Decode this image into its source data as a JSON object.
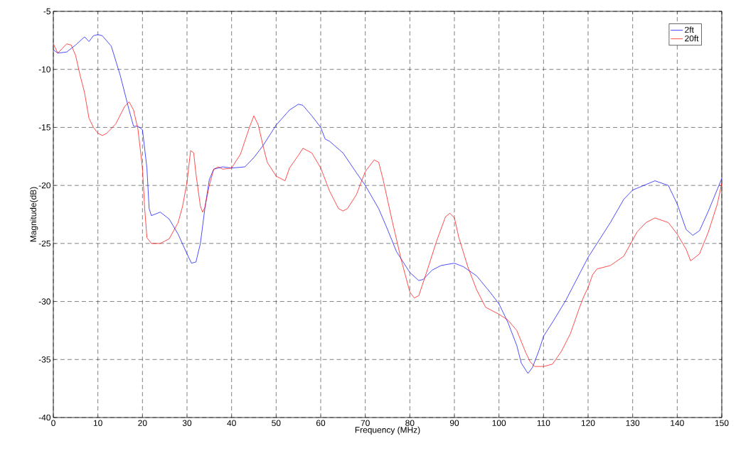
{
  "chart_data": {
    "type": "line",
    "xlabel": "Frequency (MHz)",
    "ylabel": "Magnitude(dB)",
    "xlim": [
      0,
      150
    ],
    "ylim": [
      -40,
      -5
    ],
    "xticks": [
      0,
      10,
      20,
      30,
      40,
      50,
      60,
      70,
      80,
      90,
      100,
      110,
      120,
      130,
      140,
      150
    ],
    "yticks": [
      -40,
      -35,
      -30,
      -25,
      -20,
      -15,
      -10,
      -5
    ],
    "grid": true,
    "legend": "top right",
    "line_style": "solid",
    "marker": "none",
    "series": [
      {
        "name": "2ft",
        "color": "#0000ff",
        "x": [
          0,
          1,
          3,
          5,
          7,
          8,
          9,
          10,
          11,
          13,
          15,
          17,
          18,
          19,
          20,
          21,
          21.5,
          22,
          24,
          26,
          28,
          30,
          31,
          32,
          33,
          34,
          35,
          36,
          38,
          40,
          43,
          45,
          47,
          50,
          53,
          55,
          56,
          58,
          60,
          61,
          62,
          65,
          68,
          70,
          73,
          75,
          77,
          80,
          82,
          83,
          85,
          87,
          90,
          92,
          95,
          98,
          100,
          102,
          104,
          105,
          106.5,
          107.5,
          109,
          110,
          112,
          115,
          120,
          125,
          128,
          130,
          135,
          138,
          140,
          142,
          143.5,
          145,
          147,
          150
        ],
        "values": [
          -8.3,
          -8.6,
          -8.5,
          -7.9,
          -7.2,
          -7.6,
          -7.1,
          -7.0,
          -7.1,
          -8.0,
          -10.5,
          -13.5,
          -14.9,
          -14.9,
          -15.2,
          -18.5,
          -22.0,
          -22.6,
          -22.3,
          -22.9,
          -24.2,
          -25.9,
          -26.7,
          -26.6,
          -25.0,
          -22.0,
          -19.5,
          -18.6,
          -18.4,
          -18.5,
          -18.4,
          -17.6,
          -16.6,
          -14.8,
          -13.5,
          -13.0,
          -13.1,
          -14.0,
          -15.0,
          -16.0,
          -16.2,
          -17.2,
          -18.9,
          -20.0,
          -22.0,
          -23.8,
          -25.7,
          -27.5,
          -28.2,
          -28.1,
          -27.3,
          -26.9,
          -26.7,
          -27.0,
          -27.8,
          -29.2,
          -30.2,
          -31.8,
          -33.8,
          -35.3,
          -36.2,
          -35.7,
          -34.2,
          -33.0,
          -31.8,
          -29.9,
          -26.2,
          -23.2,
          -21.2,
          -20.4,
          -19.6,
          -20.0,
          -21.6,
          -23.8,
          -24.3,
          -23.9,
          -22.2,
          -19.4
        ]
      },
      {
        "name": "20ft",
        "color": "#ff0000",
        "x": [
          0,
          1,
          2,
          3,
          4,
          5,
          6,
          7,
          8,
          9,
          10,
          11,
          12,
          14,
          16,
          17,
          18,
          19,
          20,
          20.5,
          21,
          22,
          24,
          26,
          28,
          29,
          30,
          30.8,
          31.5,
          32,
          33,
          33.5,
          34,
          35,
          36,
          37,
          38,
          40,
          42,
          44,
          45,
          46,
          47,
          48,
          50,
          52,
          53,
          55,
          56,
          58,
          60,
          62,
          64,
          65,
          66,
          68,
          70,
          72,
          73,
          74,
          76,
          78,
          80,
          81,
          82,
          84,
          86,
          88,
          89,
          90,
          91,
          93,
          95,
          97,
          100,
          102,
          104,
          106,
          107,
          108,
          110,
          112,
          114,
          116,
          118,
          119,
          120,
          121,
          122,
          125,
          128,
          130,
          131,
          133,
          135,
          138,
          140,
          142,
          143,
          145,
          147,
          149,
          150
        ],
        "values": [
          -7.8,
          -8.6,
          -8.2,
          -7.8,
          -7.9,
          -8.8,
          -10.5,
          -12.0,
          -14.2,
          -15.0,
          -15.5,
          -15.7,
          -15.5,
          -14.7,
          -13.2,
          -12.8,
          -13.5,
          -15.2,
          -18.5,
          -22.0,
          -24.5,
          -25.0,
          -25.0,
          -24.6,
          -23.2,
          -21.8,
          -19.7,
          -17.0,
          -17.2,
          -19.0,
          -21.8,
          -22.3,
          -21.9,
          -20.0,
          -18.6,
          -18.4,
          -18.6,
          -18.5,
          -17.3,
          -15.0,
          -14.0,
          -14.8,
          -16.5,
          -18.0,
          -19.2,
          -19.6,
          -18.5,
          -17.4,
          -16.8,
          -17.2,
          -18.5,
          -20.5,
          -22.0,
          -22.2,
          -22.0,
          -20.8,
          -18.8,
          -17.8,
          -18.0,
          -19.5,
          -23.0,
          -26.3,
          -29.2,
          -29.7,
          -29.5,
          -27.2,
          -24.8,
          -22.7,
          -22.4,
          -22.8,
          -24.5,
          -27.0,
          -29.0,
          -30.5,
          -31.1,
          -31.6,
          -32.5,
          -34.4,
          -35.2,
          -35.6,
          -35.6,
          -35.4,
          -34.3,
          -32.8,
          -30.6,
          -29.6,
          -28.8,
          -27.7,
          -27.2,
          -26.9,
          -26.1,
          -24.7,
          -24.0,
          -23.2,
          -22.8,
          -23.2,
          -24.2,
          -25.5,
          -26.5,
          -25.9,
          -24.0,
          -21.6,
          -19.8
        ]
      }
    ]
  }
}
